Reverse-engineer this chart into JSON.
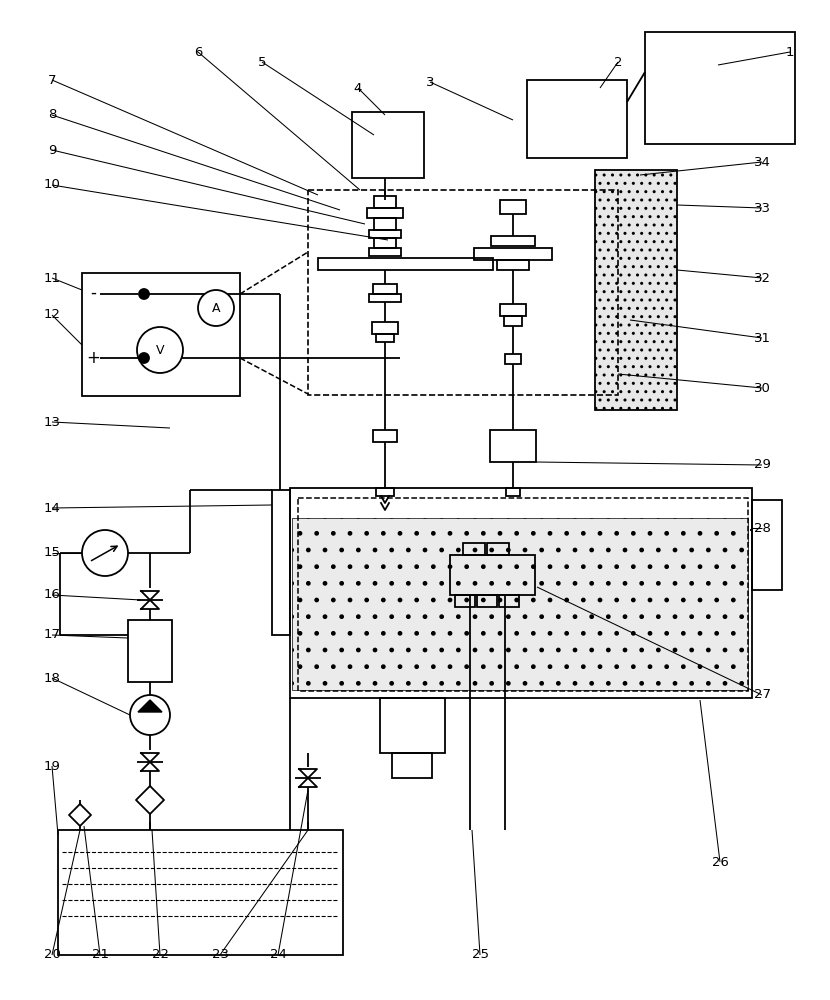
{
  "bg": "#ffffff",
  "lc": "#000000",
  "lw": 1.3,
  "fs": 9.5
}
